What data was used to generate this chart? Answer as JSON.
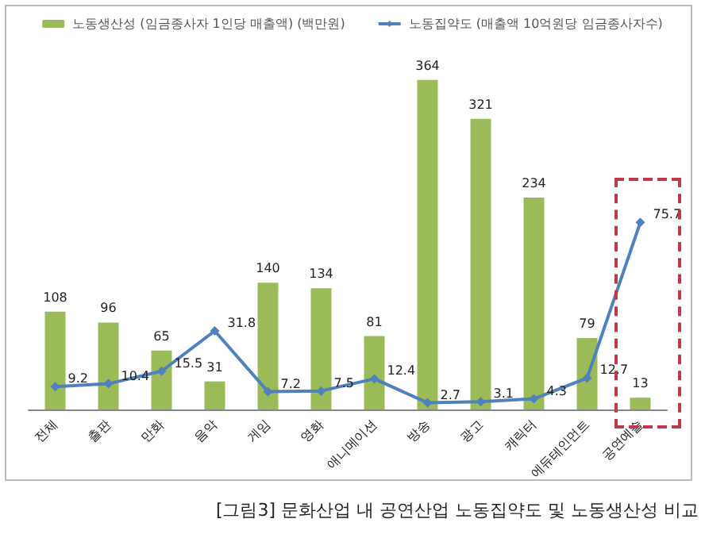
{
  "chart_data": {
    "type": "bar",
    "categories": [
      "전체",
      "출판",
      "만화",
      "음악",
      "게임",
      "영화",
      "애니메이션",
      "방송",
      "광고",
      "캐릭터",
      "에듀테인먼트",
      "공연예술"
    ],
    "series": [
      {
        "name": "노동생산성 (임금종사자 1인당 매출액) (백만원)",
        "color": "#9bbb59",
        "values": [
          108,
          96,
          65,
          31,
          140,
          134,
          81,
          364,
          321,
          234,
          79,
          13
        ]
      },
      {
        "name": "노동집약도 (매출액 10억원당 임금종사자수)",
        "type": "line",
        "axis": "y2",
        "color": "#4f81bd",
        "marker": "diamond",
        "values": [
          9.2,
          10.4,
          15.5,
          31.8,
          7.2,
          7.5,
          12.4,
          2.7,
          3.1,
          4.3,
          12.7,
          75.7
        ]
      }
    ],
    "data_labels": true,
    "legend": "top",
    "tick_labels": "x",
    "annotations": [
      "[그림3] 문화산업 내 공연산업 노동집약도 및 노동생산성 비교"
    ]
  }
}
